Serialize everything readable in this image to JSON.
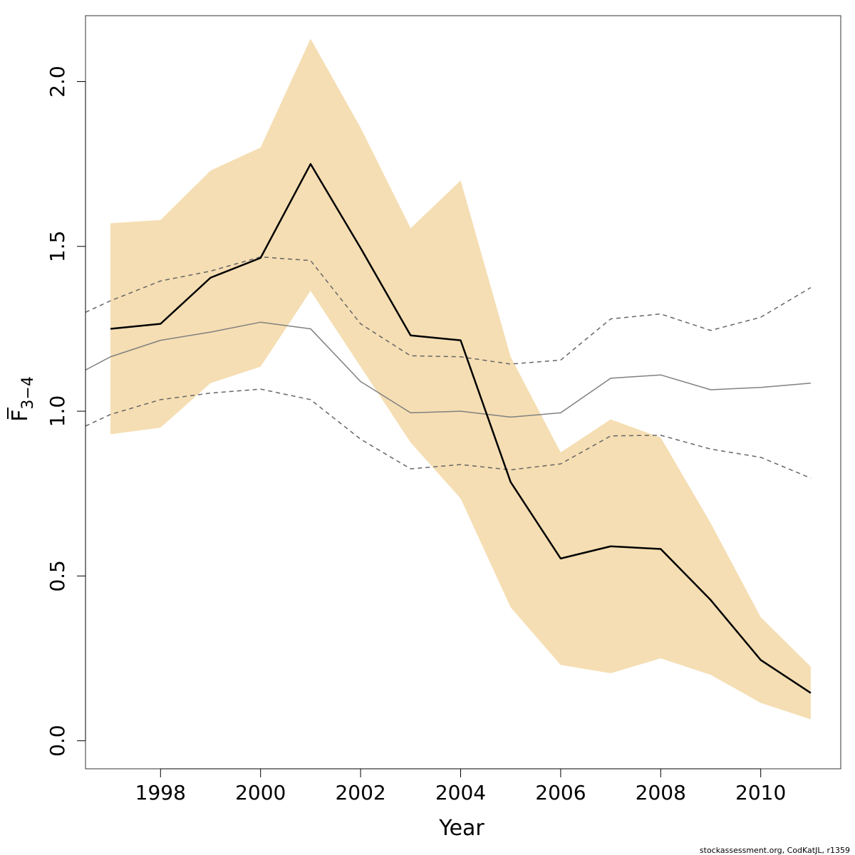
{
  "chart_data": {
    "type": "line",
    "xlabel": "Year",
    "ylabel": {
      "main": "F",
      "subscript": "3−4"
    },
    "credit": "stockassessment.org, CodKatJL, r1359",
    "xlim": [
      1996.5,
      2011.6
    ],
    "ylim": [
      -0.085,
      2.2
    ],
    "x_ticks": [
      1998,
      2000,
      2002,
      2004,
      2006,
      2008,
      2010
    ],
    "y_ticks": [
      "0.0",
      "0.5",
      "1.0",
      "1.5",
      "2.0"
    ],
    "grid": false,
    "band_color": "#F5DEB3",
    "series": [
      {
        "style": "estimate-solid-black",
        "color": "#000000",
        "x": [
          1997,
          1998,
          1999,
          2000,
          2001,
          2002,
          2003,
          2004,
          2005,
          2006,
          2007,
          2008,
          2009,
          2010,
          2011
        ],
        "values": [
          1.25,
          1.265,
          1.405,
          1.465,
          1.75,
          1.495,
          1.23,
          1.215,
          0.785,
          0.553,
          0.59,
          0.582,
          0.427,
          0.245,
          0.145
        ]
      },
      {
        "style": "band-upper",
        "x": [
          1997,
          1998,
          1999,
          2000,
          2001,
          2002,
          2003,
          2004,
          2005,
          2006,
          2007,
          2008,
          2009,
          2010,
          2011
        ],
        "values": [
          1.57,
          1.58,
          1.73,
          1.8,
          2.13,
          1.86,
          1.555,
          1.7,
          1.165,
          0.875,
          0.975,
          0.92,
          0.66,
          0.375,
          0.225
        ]
      },
      {
        "style": "band-lower",
        "x": [
          1997,
          1998,
          1999,
          2000,
          2001,
          2002,
          2003,
          2004,
          2005,
          2006,
          2007,
          2008,
          2009,
          2010,
          2011
        ],
        "values": [
          0.93,
          0.95,
          1.085,
          1.135,
          1.365,
          1.135,
          0.905,
          0.735,
          0.405,
          0.23,
          0.205,
          0.25,
          0.2,
          0.115,
          0.065
        ]
      },
      {
        "style": "grey-solid",
        "color": "#808080",
        "x": [
          1996.5,
          1997,
          1998,
          1999,
          2000,
          2001,
          2002,
          2003,
          2004,
          2005,
          2006,
          2007,
          2008,
          2009,
          2010,
          2011
        ],
        "values": [
          1.125,
          1.165,
          1.215,
          1.24,
          1.27,
          1.25,
          1.09,
          0.995,
          1.0,
          0.982,
          0.995,
          1.1,
          1.11,
          1.065,
          1.072,
          1.085
        ]
      },
      {
        "style": "grey-dashed-upper",
        "color": "#666666",
        "x": [
          1996.5,
          1997,
          1998,
          1999,
          2000,
          2001,
          2002,
          2003,
          2004,
          2005,
          2006,
          2007,
          2008,
          2009,
          2010,
          2011
        ],
        "values": [
          1.3,
          1.335,
          1.395,
          1.425,
          1.468,
          1.457,
          1.265,
          1.168,
          1.165,
          1.143,
          1.155,
          1.28,
          1.295,
          1.245,
          1.285,
          1.375
        ]
      },
      {
        "style": "grey-dashed-lower",
        "color": "#666666",
        "x": [
          1996.5,
          1997,
          1998,
          1999,
          2000,
          2001,
          2002,
          2003,
          2004,
          2005,
          2006,
          2007,
          2008,
          2009,
          2010,
          2011
        ],
        "values": [
          0.955,
          0.99,
          1.035,
          1.055,
          1.067,
          1.035,
          0.915,
          0.825,
          0.838,
          0.822,
          0.84,
          0.925,
          0.927,
          0.885,
          0.86,
          0.797
        ]
      }
    ]
  }
}
